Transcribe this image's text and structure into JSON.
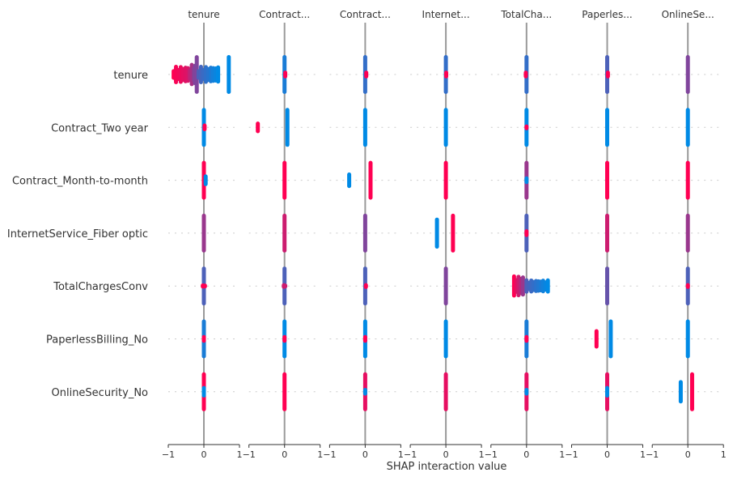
{
  "chart_data": {
    "type": "scatter",
    "subtype": "shap-interaction-summary",
    "xlabel": "SHAP interaction value",
    "xlim": [
      -1,
      1
    ],
    "xticks": [
      "−1",
      "0",
      "1"
    ],
    "rows": [
      "tenure",
      "Contract_Two year",
      "Contract_Month-to-month",
      "InternetService_Fiber optic",
      "TotalChargesConv",
      "PaperlessBilling_No",
      "OnlineSecurity_No"
    ],
    "columns": [
      "tenure",
      "Contract...",
      "Contract...",
      "Internet...",
      "TotalCha...",
      "Paperles...",
      "OnlineSe..."
    ],
    "colors": {
      "low": "#008AE5",
      "high": "#FF0052",
      "zero_line": "#999999",
      "grid": "#cccccc"
    },
    "segment_format": "[shap_from, shap_to, feature_value_from(0=low,1=high), feature_value_to, relative_density]",
    "cells": [
      [
        [
          [
            -0.85,
            -0.45,
            1,
            0.85,
            0.5
          ],
          [
            -0.4,
            -0.28,
            0.75,
            0.55,
            0.6
          ],
          [
            -0.25,
            -0.2,
            0.5,
            0.5,
            1
          ],
          [
            -0.15,
            0.4,
            0.3,
            0,
            0.5
          ],
          [
            0.7,
            0.7,
            0,
            0,
            1
          ]
        ],
        [
          [
            0,
            0,
            0.1,
            0.1,
            1
          ],
          [
            0.02,
            0.02,
            1,
            1,
            0.2
          ]
        ],
        [
          [
            0,
            0,
            0.2,
            0.2,
            1
          ],
          [
            0.03,
            0.03,
            1,
            1,
            0.2
          ]
        ],
        [
          [
            0,
            0,
            0.2,
            0.2,
            1
          ],
          [
            0.01,
            0.01,
            1,
            1,
            0.2
          ]
        ],
        [
          [
            0,
            0,
            0.2,
            0.2,
            1
          ],
          [
            -0.02,
            -0.02,
            1,
            1,
            0.2
          ]
        ],
        [
          [
            0,
            0,
            0.3,
            0.3,
            1
          ],
          [
            0.02,
            0.02,
            1,
            1,
            0.2
          ]
        ],
        [
          [
            0,
            0,
            0.5,
            0.5,
            1
          ]
        ]
      ],
      [
        [
          [
            0,
            0,
            0,
            0,
            1
          ],
          [
            0.02,
            0.02,
            1,
            1,
            0.2
          ]
        ],
        [
          [
            -0.75,
            -0.75,
            1,
            1,
            0.3
          ],
          [
            0.08,
            0.08,
            0,
            0,
            1
          ]
        ],
        [
          [
            0,
            0,
            0,
            0,
            1
          ]
        ],
        [
          [
            0,
            0,
            0,
            0,
            1
          ]
        ],
        [
          [
            0,
            0,
            0,
            0,
            1
          ],
          [
            0,
            0,
            1,
            1,
            0.15
          ]
        ],
        [
          [
            0,
            0,
            0,
            0,
            1
          ]
        ],
        [
          [
            0,
            0,
            0,
            0,
            1
          ]
        ]
      ],
      [
        [
          [
            0,
            0,
            1,
            1,
            1
          ],
          [
            0.05,
            0.05,
            0,
            0,
            0.3
          ]
        ],
        [
          [
            0,
            0,
            1,
            1,
            1
          ]
        ],
        [
          [
            -0.45,
            -0.45,
            0,
            0,
            0.4
          ],
          [
            0.15,
            0.15,
            1,
            1,
            1
          ]
        ],
        [
          [
            0,
            0,
            1,
            1,
            1
          ]
        ],
        [
          [
            0,
            0,
            0.6,
            0.6,
            1
          ],
          [
            0,
            0,
            0,
            0,
            0.2
          ]
        ],
        [
          [
            0,
            0,
            1,
            1,
            1
          ]
        ],
        [
          [
            0,
            0,
            1,
            1,
            1
          ]
        ]
      ],
      [
        [
          [
            0,
            0,
            0.6,
            0.6,
            1
          ]
        ],
        [
          [
            0,
            0,
            0.8,
            0.8,
            1
          ]
        ],
        [
          [
            0,
            0,
            0.5,
            0.5,
            1
          ]
        ],
        [
          [
            -0.25,
            -0.25,
            0,
            0,
            0.8
          ],
          [
            0.2,
            0.2,
            1,
            1,
            1
          ]
        ],
        [
          [
            0,
            0,
            0.3,
            0.3,
            1
          ],
          [
            0,
            0,
            1,
            1,
            0.2
          ]
        ],
        [
          [
            0,
            0,
            0.8,
            0.8,
            1
          ]
        ],
        [
          [
            0,
            0,
            0.6,
            0.6,
            1
          ]
        ]
      ],
      [
        [
          [
            0,
            0,
            0.3,
            0.3,
            1
          ],
          [
            -0.03,
            0.03,
            1,
            1,
            0.15
          ]
        ],
        [
          [
            0,
            0,
            0.3,
            0.3,
            1
          ],
          [
            -0.02,
            0.02,
            0.8,
            0.8,
            0.15
          ]
        ],
        [
          [
            0,
            0,
            0.3,
            0.3,
            1
          ],
          [
            0.02,
            0.02,
            1,
            1,
            0.15
          ]
        ],
        [
          [
            0,
            0,
            0.5,
            0.5,
            1
          ]
        ],
        [
          [
            -0.35,
            -0.1,
            1,
            0.6,
            0.6
          ],
          [
            0,
            0.6,
            0.3,
            0,
            0.4
          ]
        ],
        [
          [
            0,
            0,
            0.4,
            0.4,
            1
          ]
        ],
        [
          [
            0,
            0,
            0.3,
            0.3,
            1
          ],
          [
            0,
            0,
            1,
            1,
            0.15
          ]
        ]
      ],
      [
        [
          [
            0,
            0,
            0.1,
            0.1,
            1
          ],
          [
            0,
            0,
            1,
            1,
            0.2
          ]
        ],
        [
          [
            0,
            0,
            0,
            0,
            1
          ],
          [
            0,
            0,
            1,
            1,
            0.2
          ]
        ],
        [
          [
            0,
            0,
            0,
            0,
            1
          ],
          [
            0,
            0,
            1,
            1,
            0.2
          ]
        ],
        [
          [
            0,
            0,
            0,
            0,
            1
          ]
        ],
        [
          [
            0,
            0,
            0.1,
            0.1,
            1
          ],
          [
            0,
            0,
            1,
            1,
            0.2
          ]
        ],
        [
          [
            -0.3,
            -0.3,
            1,
            1,
            0.5
          ],
          [
            0.1,
            0.1,
            0,
            0,
            1
          ]
        ],
        [
          [
            0,
            0,
            0,
            0,
            1
          ]
        ]
      ],
      [
        [
          [
            0,
            0,
            1,
            1,
            1
          ],
          [
            0,
            0,
            0,
            0,
            0.3
          ]
        ],
        [
          [
            0,
            0,
            1,
            1,
            1
          ]
        ],
        [
          [
            0,
            0,
            0.9,
            0.9,
            1
          ],
          [
            0,
            0,
            0,
            0,
            0.2
          ]
        ],
        [
          [
            0,
            0,
            0.9,
            0.9,
            1
          ]
        ],
        [
          [
            0,
            0,
            0.9,
            0.9,
            1
          ],
          [
            0,
            0,
            0,
            0,
            0.2
          ]
        ],
        [
          [
            0,
            0,
            0.9,
            0.9,
            1
          ],
          [
            0,
            0,
            0,
            0,
            0.3
          ]
        ],
        [
          [
            -0.2,
            -0.2,
            0,
            0,
            0.6
          ],
          [
            0.12,
            0.12,
            1,
            1,
            1
          ]
        ]
      ]
    ]
  }
}
